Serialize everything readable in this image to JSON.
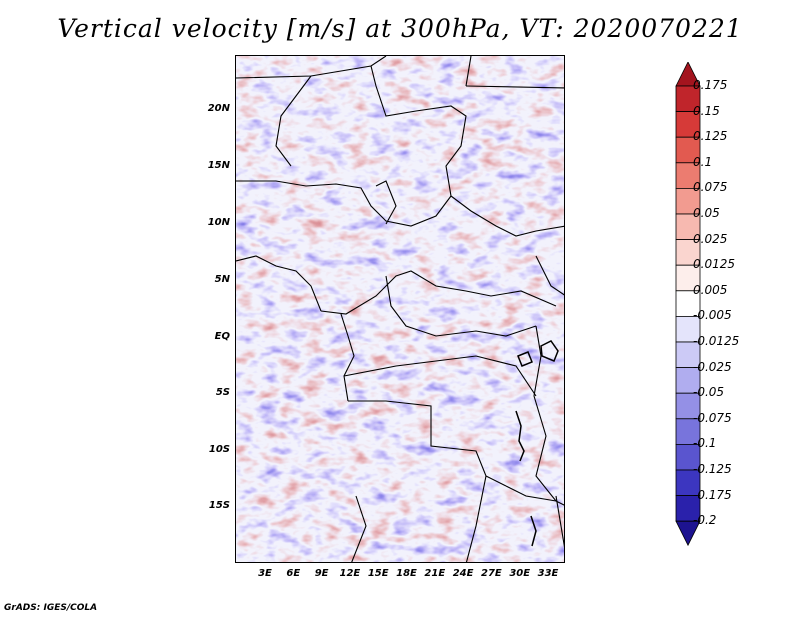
{
  "title": "Vertical velocity [m/s] at 300hPa, VT: 2020070221",
  "credit": "GrADS: IGES/COLA",
  "map": {
    "lat_ticks": [
      "20N",
      "15N",
      "10N",
      "5N",
      "EQ",
      "5S",
      "10S",
      "15S"
    ],
    "lon_ticks": [
      "3E",
      "6E",
      "9E",
      "12E",
      "15E",
      "18E",
      "21E",
      "24E",
      "27E",
      "30E",
      "33E"
    ]
  },
  "colorbar": {
    "labels": [
      "0.175",
      "0.15",
      "0.125",
      "0.1",
      "0.075",
      "0.05",
      "0.025",
      "0.0125",
      "0.005",
      "-0.005",
      "-0.0125",
      "-0.025",
      "-0.05",
      "-0.075",
      "-0.1",
      "-0.125",
      "-0.175",
      "-0.2"
    ],
    "colors": [
      "#a3141e",
      "#c0252b",
      "#d63a38",
      "#e25a50",
      "#ec7c70",
      "#f29b90",
      "#f7b9b0",
      "#fad5cf",
      "#fdeeeb",
      "#ffffff",
      "#e4e4fb",
      "#cccaf6",
      "#b0adef",
      "#9490e6",
      "#7874dc",
      "#5a55cf",
      "#3c36c0",
      "#2a21ab",
      "#1d1390"
    ]
  }
}
